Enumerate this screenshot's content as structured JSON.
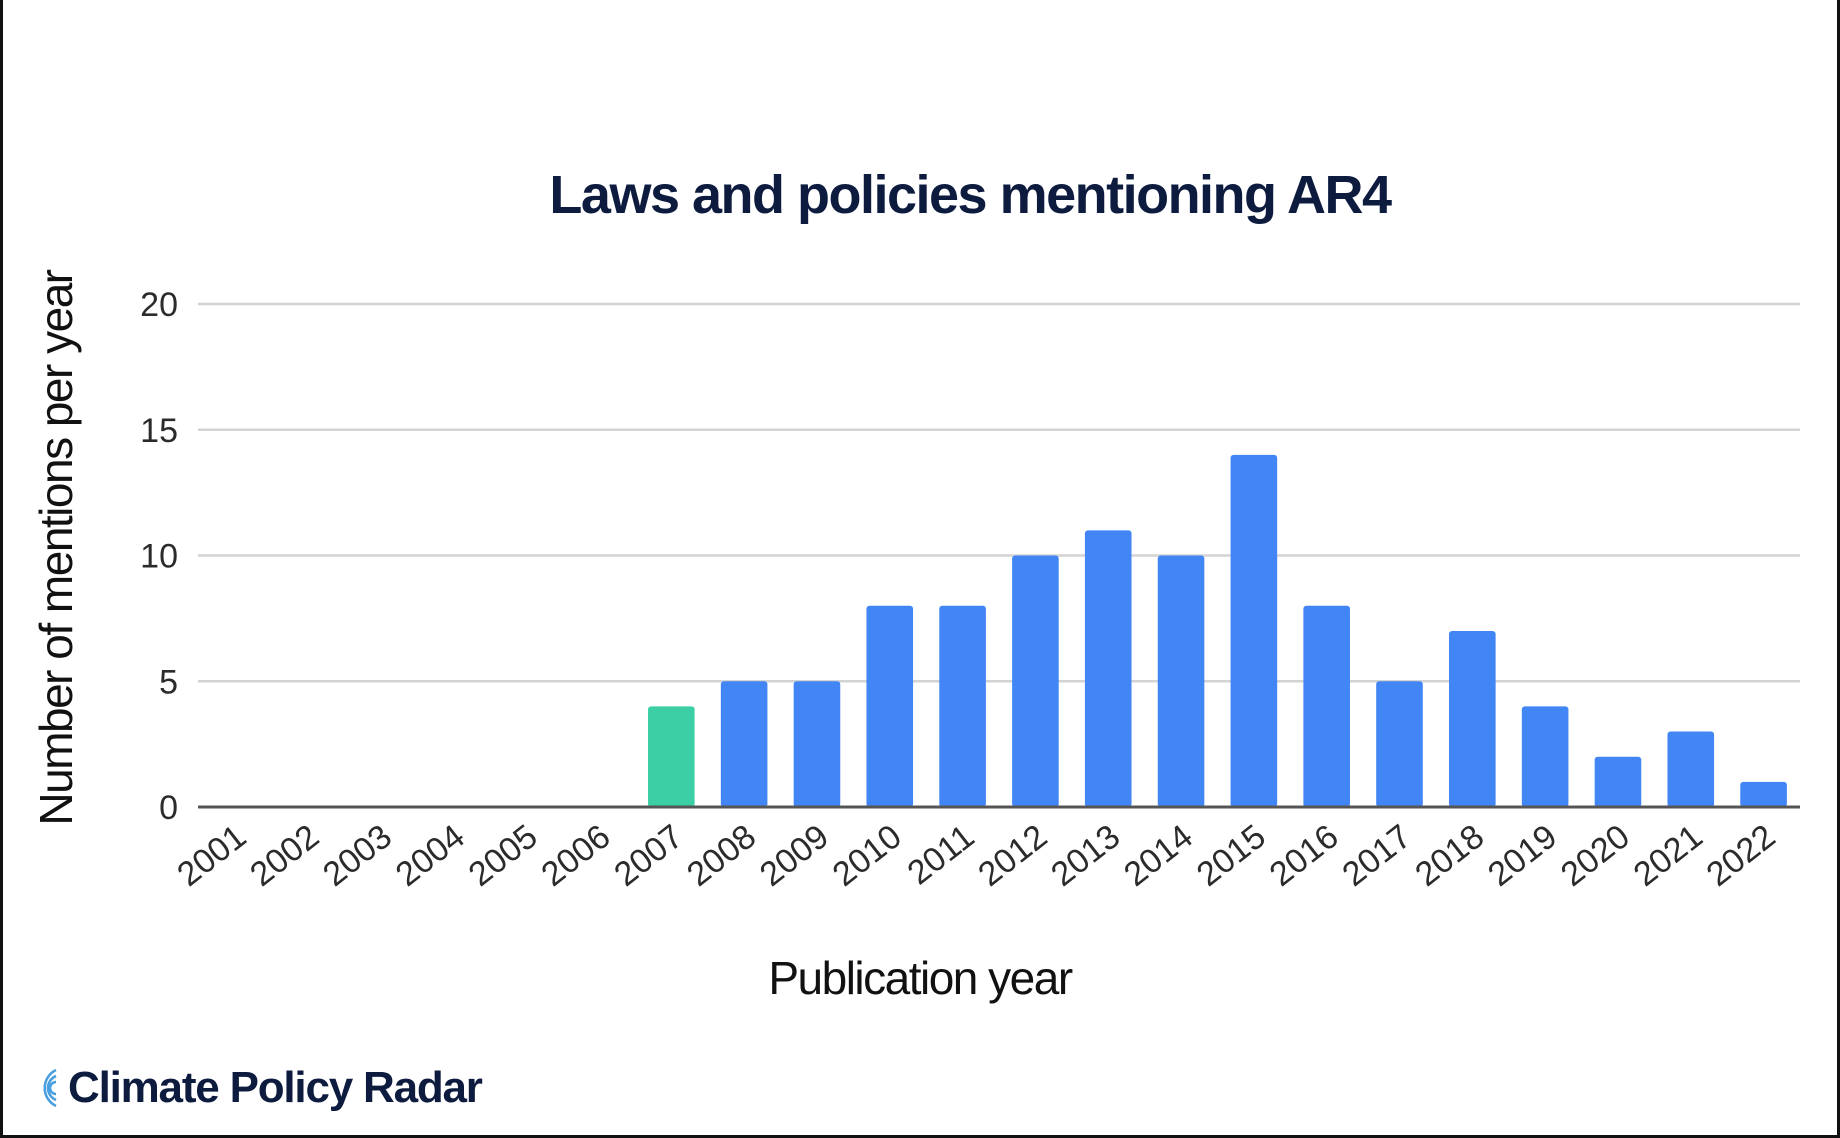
{
  "brand": {
    "name": "Climate Policy Radar"
  },
  "colors": {
    "default_bar": "#4285f4",
    "highlight_bar": "#3ccfa6",
    "gridline": "#d3d3d3",
    "baseline": "#555555",
    "title": "#0d1b3e",
    "brand": "#0d1b3e"
  },
  "chart_data": {
    "type": "bar",
    "title": "Laws and policies mentioning AR4",
    "xlabel": "Publication year",
    "ylabel": "Number of mentions per year",
    "categories": [
      "2001",
      "2002",
      "2003",
      "2004",
      "2005",
      "2006",
      "2007",
      "2008",
      "2009",
      "2010",
      "2011",
      "2012",
      "2013",
      "2014",
      "2015",
      "2016",
      "2017",
      "2018",
      "2019",
      "2020",
      "2021",
      "2022"
    ],
    "values": [
      0,
      0,
      0,
      0,
      0,
      0,
      4,
      5,
      5,
      8,
      8,
      10,
      11,
      10,
      14,
      8,
      5,
      7,
      4,
      2,
      3,
      1
    ],
    "highlight_category": "2007",
    "ylim": [
      0,
      20
    ],
    "yticks": [
      0,
      5,
      10,
      15,
      20
    ],
    "grid": true,
    "legend": "none"
  }
}
